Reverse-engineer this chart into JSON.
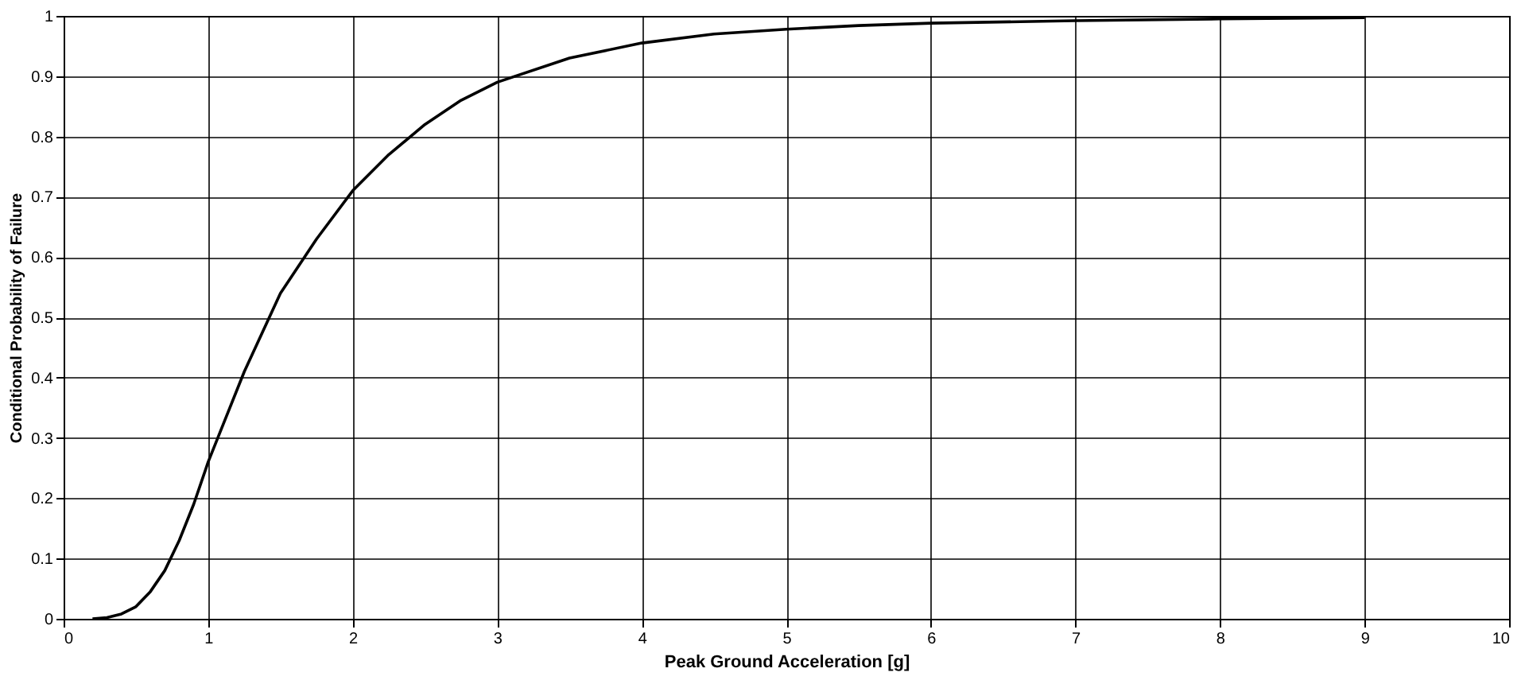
{
  "chart_data": {
    "type": "line",
    "xlabel": "Peak Ground Acceleration [g]",
    "ylabel": "Conditional Probability of Failure",
    "x": [
      0.2,
      0.3,
      0.4,
      0.5,
      0.6,
      0.7,
      0.8,
      0.9,
      1.0,
      1.1,
      1.25,
      1.5,
      1.75,
      2.0,
      2.25,
      2.5,
      2.75,
      3.0,
      3.5,
      4.0,
      4.5,
      5.0,
      5.5,
      6.0,
      7.0,
      8.0,
      9.0
    ],
    "series": [
      {
        "color": "#000000",
        "values": [
          0.0,
          0.002,
          0.008,
          0.02,
          0.045,
          0.08,
          0.13,
          0.19,
          0.26,
          0.32,
          0.41,
          0.54,
          0.63,
          0.71,
          0.77,
          0.82,
          0.86,
          0.89,
          0.93,
          0.955,
          0.97,
          0.978,
          0.984,
          0.988,
          0.992,
          0.995,
          0.997
        ]
      }
    ],
    "xlim": [
      0,
      10
    ],
    "xticks": [
      0,
      1,
      2,
      3,
      4,
      5,
      6,
      7,
      8,
      9,
      10
    ],
    "ylim": [
      0,
      1
    ],
    "yticks": [
      0,
      0.1,
      0.2,
      0.3,
      0.4,
      0.5,
      0.6,
      0.7,
      0.8,
      0.9,
      1
    ],
    "grid": true,
    "marker": "none",
    "line_style": "solid"
  }
}
